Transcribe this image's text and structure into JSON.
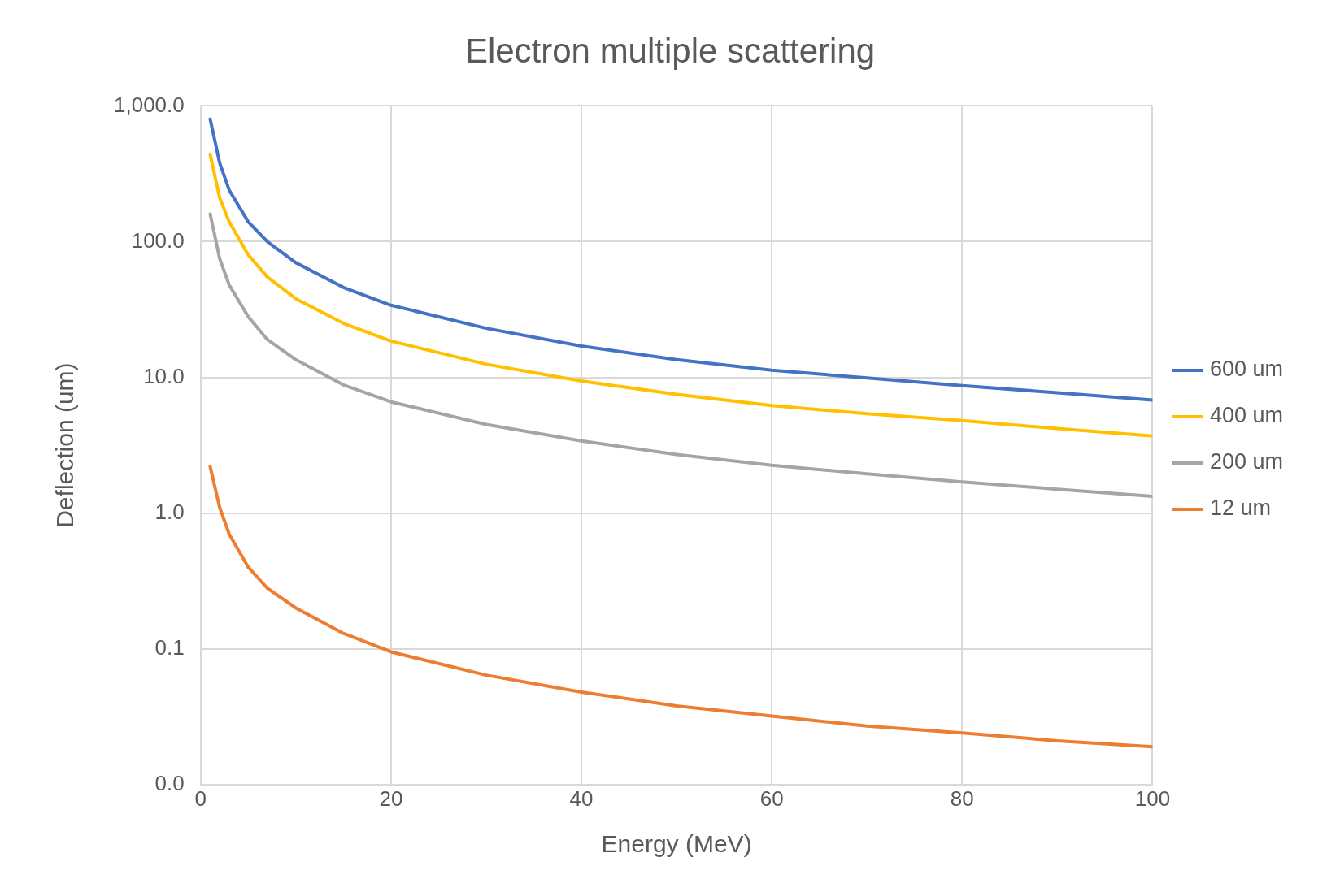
{
  "chart_data": {
    "type": "line",
    "title": "Electron multiple scattering",
    "xlabel": "Energy (MeV)",
    "ylabel": "Deflection (um)",
    "x": [
      1,
      2,
      3,
      5,
      7,
      10,
      15,
      20,
      30,
      40,
      50,
      60,
      70,
      80,
      90,
      100
    ],
    "series": [
      {
        "name": "600 um",
        "color": "#4472c4",
        "values": [
          800,
          380,
          240,
          140,
          100,
          70,
          46,
          34,
          23,
          17,
          13.5,
          11.3,
          9.9,
          8.7,
          7.7,
          6.8
        ]
      },
      {
        "name": "400 um",
        "color": "#ffc000",
        "values": [
          440,
          210,
          140,
          80,
          55,
          38,
          25,
          18.5,
          12.5,
          9.4,
          7.5,
          6.2,
          5.4,
          4.8,
          4.2,
          3.7
        ]
      },
      {
        "name": "200 um",
        "color": "#a5a5a5",
        "values": [
          160,
          75,
          48,
          28,
          19,
          13.5,
          8.8,
          6.6,
          4.5,
          3.4,
          2.7,
          2.25,
          1.95,
          1.7,
          1.5,
          1.33
        ]
      },
      {
        "name": "12 um",
        "color": "#ed7d31",
        "values": [
          2.2,
          1.1,
          0.7,
          0.4,
          0.28,
          0.2,
          0.13,
          0.095,
          0.064,
          0.048,
          0.038,
          0.032,
          0.027,
          0.024,
          0.021,
          0.019
        ]
      }
    ],
    "xlim": [
      0,
      100
    ],
    "xticks": [
      0,
      20,
      40,
      60,
      80,
      100
    ],
    "ylim": [
      0.01,
      1000
    ],
    "yticks": [
      {
        "value": 0.01,
        "label": "0.0"
      },
      {
        "value": 0.1,
        "label": "0.1"
      },
      {
        "value": 1,
        "label": "1.0"
      },
      {
        "value": 10,
        "label": "10.0"
      },
      {
        "value": 100,
        "label": "100.0"
      },
      {
        "value": 1000,
        "label": "1,000.0"
      }
    ],
    "log": true,
    "grid": true,
    "legend": "right",
    "marker": "none",
    "line_style": "solid"
  }
}
